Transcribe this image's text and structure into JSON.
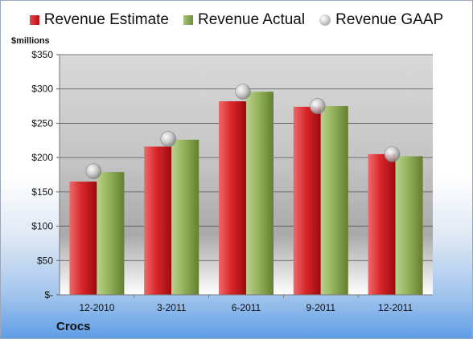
{
  "legend": {
    "estimate": "Revenue Estimate",
    "actual": "Revenue Actual",
    "gaap": "Revenue GAAP"
  },
  "unit_label": "$millions",
  "company": "Crocs",
  "colors": {
    "estimate": "#c8191c",
    "actual": "#8aa84f",
    "gaap": "#bdbdbd"
  },
  "chart_data": {
    "type": "bar",
    "categories": [
      "12-2010",
      "3-2011",
      "6-2011",
      "9-2011",
      "12-2011"
    ],
    "series": [
      {
        "name": "Revenue Estimate",
        "values": [
          165,
          216,
          282,
          274,
          205
        ]
      },
      {
        "name": "Revenue Actual",
        "values": [
          179,
          226,
          296,
          275,
          202
        ]
      },
      {
        "name": "Revenue GAAP",
        "values": [
          180,
          227,
          296,
          275,
          205
        ],
        "marker": "circle"
      }
    ],
    "ylabel": "$millions",
    "ylim": [
      0,
      350
    ],
    "yticks": [
      0,
      50,
      100,
      150,
      200,
      250,
      300,
      350
    ],
    "ytick_labels": [
      "$-",
      "$50",
      "$100",
      "$150",
      "$200",
      "$250",
      "$300",
      "$350"
    ],
    "grid": true,
    "legend_position": "top"
  }
}
